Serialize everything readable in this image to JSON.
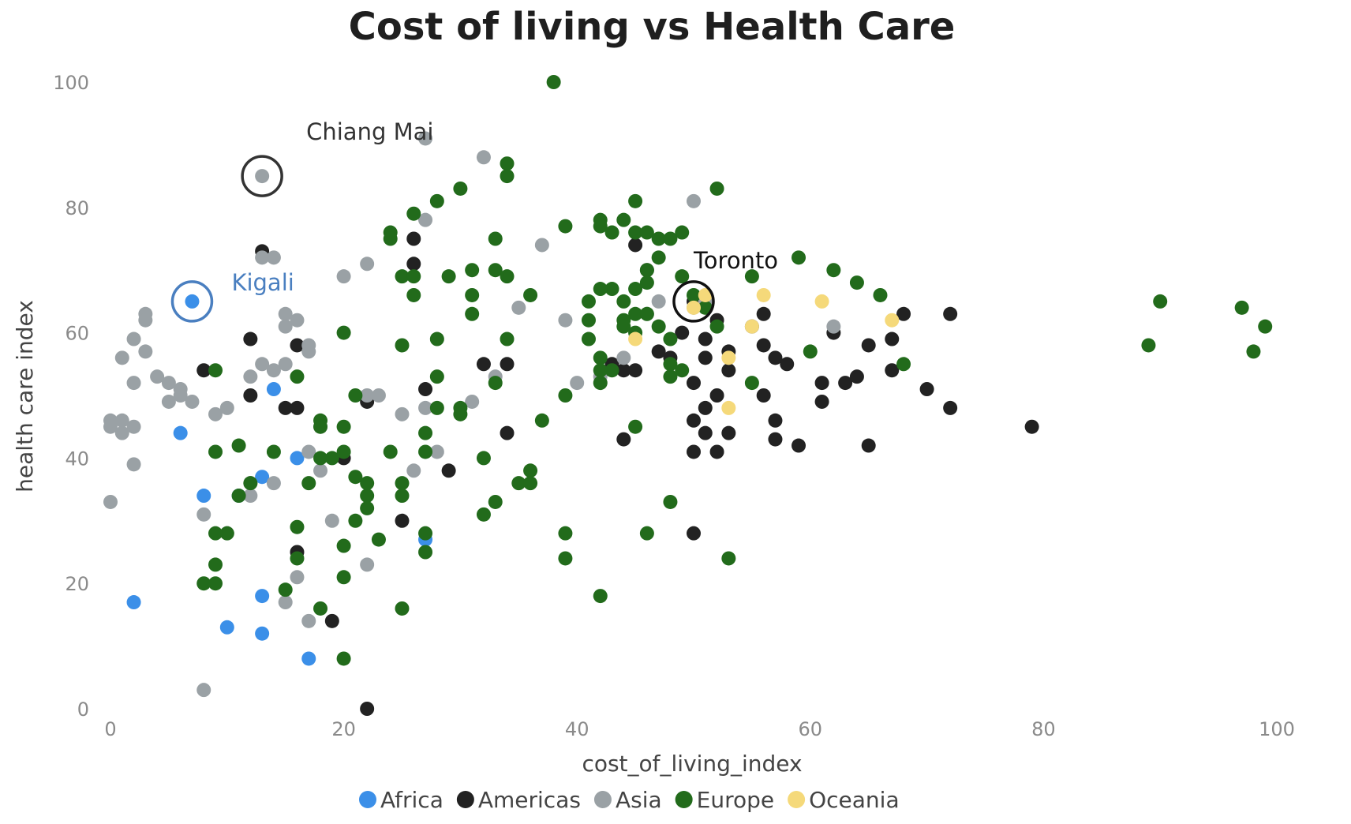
{
  "chart_data": {
    "type": "scatter",
    "title": "Cost of living vs Health Care",
    "xlabel": "cost_of_living_index",
    "ylabel": "health care index",
    "xlim": [
      0,
      100
    ],
    "ylim": [
      0,
      100
    ],
    "x_ticks": [
      "0",
      "20",
      "40",
      "60",
      "80",
      "100"
    ],
    "y_ticks": [
      "0",
      "20",
      "40",
      "60",
      "80",
      "100"
    ],
    "grid": false,
    "legend_position": "bottom",
    "series": [
      {
        "name": "Africa",
        "color": "#3b8fe8",
        "points": [
          [
            7,
            65
          ],
          [
            14,
            51
          ],
          [
            6,
            44
          ],
          [
            16,
            40
          ],
          [
            8,
            34
          ],
          [
            11,
            34
          ],
          [
            13,
            37
          ],
          [
            27,
            27
          ],
          [
            2,
            17
          ],
          [
            13,
            18
          ],
          [
            10,
            13
          ],
          [
            13,
            12
          ],
          [
            17,
            8
          ]
        ]
      },
      {
        "name": "Americas",
        "color": "#222222",
        "points": [
          [
            13,
            73
          ],
          [
            26,
            75
          ],
          [
            26,
            71
          ],
          [
            12,
            59
          ],
          [
            16,
            58
          ],
          [
            8,
            54
          ],
          [
            12,
            50
          ],
          [
            15,
            48
          ],
          [
            16,
            48
          ],
          [
            22,
            49
          ],
          [
            27,
            51
          ],
          [
            32,
            55
          ],
          [
            34,
            55
          ],
          [
            20,
            40
          ],
          [
            29,
            38
          ],
          [
            25,
            30
          ],
          [
            16,
            25
          ],
          [
            34,
            44
          ],
          [
            19,
            14
          ],
          [
            22,
            0
          ],
          [
            43,
            55
          ],
          [
            44,
            54
          ],
          [
            45,
            74
          ],
          [
            46,
            70
          ],
          [
            47,
            57
          ],
          [
            48,
            56
          ],
          [
            49,
            60
          ],
          [
            50,
            65
          ],
          [
            51,
            59
          ],
          [
            51,
            56
          ],
          [
            51,
            48
          ],
          [
            51,
            44
          ],
          [
            50,
            52
          ],
          [
            50,
            46
          ],
          [
            50,
            41
          ],
          [
            52,
            50
          ],
          [
            52,
            62
          ],
          [
            53,
            57
          ],
          [
            53,
            54
          ],
          [
            53,
            44
          ],
          [
            52,
            41
          ],
          [
            55,
            61
          ],
          [
            56,
            58
          ],
          [
            56,
            63
          ],
          [
            56,
            50
          ],
          [
            57,
            56
          ],
          [
            57,
            46
          ],
          [
            57,
            43
          ],
          [
            58,
            55
          ],
          [
            59,
            42
          ],
          [
            62,
            60
          ],
          [
            61,
            52
          ],
          [
            61,
            49
          ],
          [
            63,
            52
          ],
          [
            64,
            53
          ],
          [
            65,
            58
          ],
          [
            67,
            54
          ],
          [
            67,
            59
          ],
          [
            68,
            63
          ],
          [
            70,
            51
          ],
          [
            72,
            63
          ],
          [
            72,
            48
          ],
          [
            79,
            45
          ],
          [
            50,
            28
          ],
          [
            65,
            42
          ],
          [
            44,
            43
          ],
          [
            45,
            54
          ]
        ]
      },
      {
        "name": "Asia",
        "color": "#9aa1a5",
        "points": [
          [
            13,
            85
          ],
          [
            27,
            91
          ],
          [
            32,
            88
          ],
          [
            27,
            78
          ],
          [
            37,
            74
          ],
          [
            50,
            81
          ],
          [
            22,
            71
          ],
          [
            13,
            72
          ],
          [
            14,
            72
          ],
          [
            20,
            69
          ],
          [
            3,
            63
          ],
          [
            3,
            62
          ],
          [
            15,
            63
          ],
          [
            15,
            61
          ],
          [
            16,
            62
          ],
          [
            17,
            58
          ],
          [
            17,
            57
          ],
          [
            15,
            55
          ],
          [
            14,
            54
          ],
          [
            13,
            55
          ],
          [
            12,
            53
          ],
          [
            2,
            59
          ],
          [
            1,
            56
          ],
          [
            3,
            57
          ],
          [
            4,
            53
          ],
          [
            5,
            52
          ],
          [
            6,
            51
          ],
          [
            5,
            49
          ],
          [
            6,
            50
          ],
          [
            7,
            49
          ],
          [
            9,
            47
          ],
          [
            10,
            48
          ],
          [
            1,
            46
          ],
          [
            1,
            44
          ],
          [
            2,
            45
          ],
          [
            0,
            45
          ],
          [
            0,
            46
          ],
          [
            2,
            52
          ],
          [
            2,
            39
          ],
          [
            0,
            33
          ],
          [
            18,
            45
          ],
          [
            17,
            41
          ],
          [
            18,
            38
          ],
          [
            12,
            36
          ],
          [
            12,
            34
          ],
          [
            14,
            36
          ],
          [
            10,
            28
          ],
          [
            8,
            31
          ],
          [
            19,
            30
          ],
          [
            16,
            21
          ],
          [
            15,
            17
          ],
          [
            17,
            14
          ],
          [
            22,
            23
          ],
          [
            8,
            3
          ],
          [
            35,
            64
          ],
          [
            39,
            62
          ],
          [
            40,
            52
          ],
          [
            42,
            53
          ],
          [
            44,
            56
          ],
          [
            46,
            63
          ],
          [
            47,
            65
          ],
          [
            50,
            64
          ],
          [
            51,
            65
          ],
          [
            62,
            61
          ],
          [
            22,
            50
          ],
          [
            23,
            50
          ],
          [
            25,
            47
          ],
          [
            26,
            38
          ],
          [
            27,
            48
          ],
          [
            28,
            41
          ],
          [
            31,
            49
          ],
          [
            33,
            53
          ]
        ]
      },
      {
        "name": "Europe",
        "color": "#226b1b",
        "points": [
          [
            38,
            100
          ],
          [
            34,
            87
          ],
          [
            34,
            85
          ],
          [
            30,
            83
          ],
          [
            28,
            81
          ],
          [
            26,
            79
          ],
          [
            24,
            76
          ],
          [
            24,
            75
          ],
          [
            29,
            69
          ],
          [
            31,
            70
          ],
          [
            33,
            70
          ],
          [
            34,
            69
          ],
          [
            36,
            66
          ],
          [
            33,
            75
          ],
          [
            25,
            69
          ],
          [
            26,
            69
          ],
          [
            26,
            66
          ],
          [
            31,
            66
          ],
          [
            31,
            63
          ],
          [
            20,
            60
          ],
          [
            28,
            59
          ],
          [
            34,
            59
          ],
          [
            25,
            58
          ],
          [
            16,
            53
          ],
          [
            28,
            53
          ],
          [
            33,
            52
          ],
          [
            21,
            50
          ],
          [
            30,
            48
          ],
          [
            39,
            77
          ],
          [
            42,
            77
          ],
          [
            42,
            78
          ],
          [
            43,
            76
          ],
          [
            44,
            78
          ],
          [
            45,
            81
          ],
          [
            45,
            76
          ],
          [
            46,
            76
          ],
          [
            47,
            75
          ],
          [
            48,
            75
          ],
          [
            49,
            76
          ],
          [
            49,
            69
          ],
          [
            46,
            70
          ],
          [
            47,
            72
          ],
          [
            46,
            68
          ],
          [
            45,
            67
          ],
          [
            44,
            65
          ],
          [
            43,
            67
          ],
          [
            42,
            67
          ],
          [
            41,
            65
          ],
          [
            41,
            62
          ],
          [
            41,
            59
          ],
          [
            42,
            56
          ],
          [
            42,
            54
          ],
          [
            42,
            52
          ],
          [
            43,
            54
          ],
          [
            44,
            62
          ],
          [
            44,
            61
          ],
          [
            45,
            63
          ],
          [
            45,
            60
          ],
          [
            46,
            63
          ],
          [
            47,
            61
          ],
          [
            48,
            59
          ],
          [
            48,
            55
          ],
          [
            48,
            53
          ],
          [
            49,
            54
          ],
          [
            50,
            66
          ],
          [
            51,
            64
          ],
          [
            52,
            61
          ],
          [
            52,
            83
          ],
          [
            55,
            69
          ],
          [
            59,
            72
          ],
          [
            60,
            57
          ],
          [
            62,
            70
          ],
          [
            64,
            68
          ],
          [
            66,
            66
          ],
          [
            68,
            55
          ],
          [
            90,
            65
          ],
          [
            89,
            58
          ],
          [
            97,
            64
          ],
          [
            98,
            57
          ],
          [
            99,
            61
          ],
          [
            37,
            46
          ],
          [
            39,
            50
          ],
          [
            39,
            28
          ],
          [
            39,
            24
          ],
          [
            42,
            18
          ],
          [
            46,
            28
          ],
          [
            48,
            33
          ],
          [
            53,
            24
          ],
          [
            55,
            52
          ],
          [
            45,
            45
          ],
          [
            18,
            16
          ],
          [
            18,
            46
          ],
          [
            18,
            45
          ],
          [
            19,
            40
          ],
          [
            20,
            45
          ],
          [
            20,
            41
          ],
          [
            21,
            37
          ],
          [
            22,
            36
          ],
          [
            22,
            34
          ],
          [
            22,
            32
          ],
          [
            21,
            30
          ],
          [
            20,
            26
          ],
          [
            20,
            21
          ],
          [
            20,
            8
          ],
          [
            23,
            27
          ],
          [
            24,
            41
          ],
          [
            25,
            36
          ],
          [
            25,
            34
          ],
          [
            25,
            16
          ],
          [
            27,
            44
          ],
          [
            27,
            41
          ],
          [
            27,
            28
          ],
          [
            27,
            25
          ],
          [
            28,
            48
          ],
          [
            30,
            47
          ],
          [
            32,
            40
          ],
          [
            32,
            31
          ],
          [
            33,
            33
          ],
          [
            35,
            36
          ],
          [
            36,
            38
          ],
          [
            36,
            36
          ],
          [
            18,
            40
          ],
          [
            17,
            36
          ],
          [
            16,
            29
          ],
          [
            16,
            24
          ],
          [
            15,
            19
          ],
          [
            14,
            41
          ],
          [
            12,
            36
          ],
          [
            11,
            42
          ],
          [
            11,
            34
          ],
          [
            10,
            28
          ],
          [
            9,
            28
          ],
          [
            9,
            41
          ],
          [
            9,
            23
          ],
          [
            9,
            20
          ],
          [
            8,
            20
          ],
          [
            9,
            54
          ]
        ]
      },
      {
        "name": "Oceania",
        "color": "#f5d97a",
        "points": [
          [
            45,
            59
          ],
          [
            50,
            64
          ],
          [
            51,
            66
          ],
          [
            53,
            56
          ],
          [
            53,
            48
          ],
          [
            55,
            61
          ],
          [
            56,
            66
          ],
          [
            61,
            65
          ],
          [
            67,
            62
          ]
        ]
      }
    ],
    "annotations": [
      {
        "text": "Chiang Mai",
        "x": 13,
        "y": 85,
        "color": "#333333"
      },
      {
        "text": "Kigali",
        "x": 7,
        "y": 65,
        "color": "#4a7fc0"
      },
      {
        "text": "Toronto",
        "x": 50,
        "y": 65,
        "color": "#111111"
      }
    ]
  }
}
